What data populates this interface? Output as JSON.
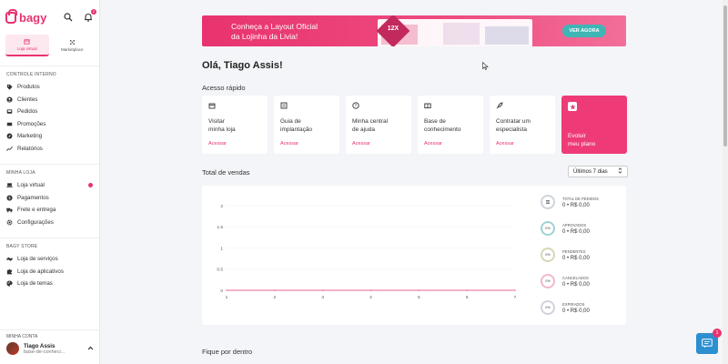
{
  "sidebar": {
    "logo_text": "bagy",
    "tabs": [
      {
        "label": "Loja virtual",
        "active": true
      },
      {
        "label": "Marketplace",
        "active": false
      }
    ],
    "bell_badge": "2",
    "sections": [
      {
        "title": "CONTROLE INTERNO",
        "items": [
          {
            "label": "Produtos",
            "icon": "tag-icon"
          },
          {
            "label": "Clientes",
            "icon": "user-circle-icon"
          },
          {
            "label": "Pedidos",
            "icon": "inbox-icon"
          },
          {
            "label": "Promoções",
            "icon": "ticket-icon"
          },
          {
            "label": "Marketing",
            "icon": "compass-icon"
          },
          {
            "label": "Relatórios",
            "icon": "chart-line-icon"
          }
        ]
      },
      {
        "title": "MINHA LOJA",
        "items": [
          {
            "label": "Loja virtual",
            "icon": "laptop-icon",
            "dot": true
          },
          {
            "label": "Pagamentos",
            "icon": "dollar-circle-icon"
          },
          {
            "label": "Frete e entrega",
            "icon": "truck-icon"
          },
          {
            "label": "Configurações",
            "icon": "gear-icon"
          }
        ]
      },
      {
        "title": "BAGY STORE",
        "items": [
          {
            "label": "Loja de serviços",
            "icon": "handshake-icon"
          },
          {
            "label": "Loja de aplicativos",
            "icon": "puzzle-icon"
          },
          {
            "label": "Loja de temas",
            "icon": "palette-icon"
          }
        ]
      }
    ],
    "account": {
      "title": "MINHA CONTA",
      "name": "Tiago Assis",
      "sub": "base-de-conheci..."
    }
  },
  "banner": {
    "line1": "Conheça a Layout Oficial",
    "line2": "da Lojinha da Livia!",
    "badge": "12X",
    "button": "VER AGORA"
  },
  "greeting": "Olá, Tiago Assis!",
  "quick_access": {
    "title": "Acesso rápido",
    "cards": [
      {
        "line1": "Visitar",
        "line2": "minha loja",
        "action": "Acessar",
        "icon": "store-icon"
      },
      {
        "line1": "Guia de",
        "line2": "implantação",
        "action": "Acessar",
        "icon": "list-icon"
      },
      {
        "line1": "Minha central",
        "line2": "de ajuda",
        "action": "Acessar",
        "icon": "help-circle-icon"
      },
      {
        "line1": "Base de",
        "line2": "conhecimento",
        "action": "Acessar",
        "icon": "book-icon"
      },
      {
        "line1": "Contratar um",
        "line2": "especialista",
        "action": "Acessar",
        "icon": "rocket-icon"
      },
      {
        "line1": "Evoluir",
        "line2": "meu plano",
        "icon": "star-icon"
      }
    ]
  },
  "sales": {
    "title": "Total de vendas",
    "period": "Últimos 7 dias",
    "stats": [
      {
        "label": "TOTAL DE PEDIDOS",
        "value": "0 • R$ 0,00",
        "circle": "",
        "color": "#cfd4dc"
      },
      {
        "label": "APROVADOS",
        "value": "0 • R$ 0,00",
        "circle": "0%",
        "color": "#9fd3d6"
      },
      {
        "label": "PENDENTES",
        "value": "0 • R$ 0,00",
        "circle": "0%",
        "color": "#d9d6b8"
      },
      {
        "label": "CANCELADOS",
        "value": "0 • R$ 0,00",
        "circle": "0%",
        "color": "#f1b9c8"
      },
      {
        "label": "EXPIRADOS",
        "value": "0 • R$ 0,00",
        "circle": "0%",
        "color": "#cfd4dc"
      }
    ]
  },
  "chart_data": {
    "type": "line",
    "x": [
      1,
      2,
      3,
      4,
      5,
      6,
      7
    ],
    "series": [
      {
        "values": [
          0,
          0,
          0,
          0,
          0,
          0,
          0
        ]
      }
    ],
    "y_ticks": [
      "0",
      "0.5",
      "1",
      "1.5",
      "2"
    ],
    "x_ticks": [
      "1",
      "2",
      "3",
      "4",
      "5",
      "6",
      "7"
    ],
    "ylim": [
      0,
      2
    ],
    "line_color": "#e8336e"
  },
  "section_bottom": "Fique por dentro",
  "chat_badge": "1"
}
